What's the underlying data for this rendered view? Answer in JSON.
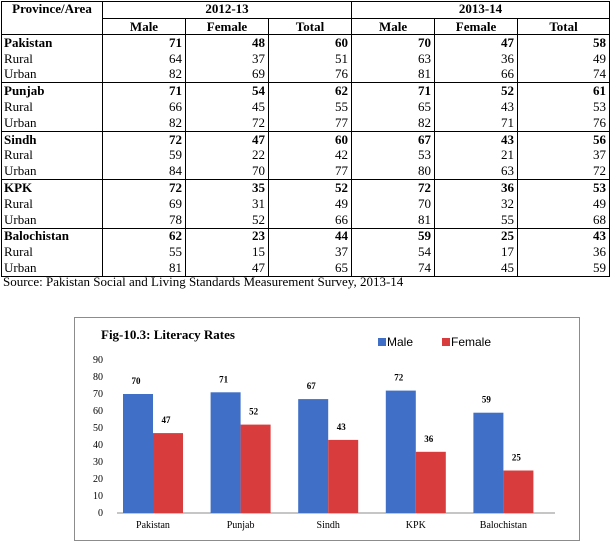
{
  "table": {
    "area_header": "Province/Area",
    "years": [
      "2012-13",
      "2013-14"
    ],
    "subheaders": [
      "Male",
      "Female",
      "Total",
      "Male",
      "Female",
      "Total"
    ],
    "rows": [
      {
        "area": "Pakistan",
        "bold": true,
        "v": [
          "71",
          "48",
          "60",
          "70",
          "47",
          "58"
        ]
      },
      {
        "area": "Rural",
        "bold": false,
        "v": [
          "64",
          "37",
          "51",
          "63",
          "36",
          "49"
        ]
      },
      {
        "area": "Urban",
        "bold": false,
        "v": [
          "82",
          "69",
          "76",
          "81",
          "66",
          "74"
        ]
      },
      {
        "area": "Punjab",
        "bold": true,
        "v": [
          "71",
          "54",
          "62",
          "71",
          "52",
          "61"
        ]
      },
      {
        "area": "Rural",
        "bold": false,
        "v": [
          "66",
          "45",
          "55",
          "65",
          "43",
          "53"
        ]
      },
      {
        "area": "Urban",
        "bold": false,
        "v": [
          "82",
          "72",
          "77",
          "82",
          "71",
          "76"
        ]
      },
      {
        "area": "Sindh",
        "bold": true,
        "v": [
          "72",
          "47",
          "60",
          "67",
          "43",
          "56"
        ]
      },
      {
        "area": "Rural",
        "bold": false,
        "v": [
          "59",
          "22",
          "42",
          "53",
          "21",
          "37"
        ]
      },
      {
        "area": "Urban",
        "bold": false,
        "v": [
          "84",
          "70",
          "77",
          "80",
          "63",
          "72"
        ]
      },
      {
        "area": "KPK",
        "bold": true,
        "v": [
          "72",
          "35",
          "52",
          "72",
          "36",
          "53"
        ]
      },
      {
        "area": "Rural",
        "bold": false,
        "v": [
          "69",
          "31",
          "49",
          "70",
          "32",
          "49"
        ]
      },
      {
        "area": "Urban",
        "bold": false,
        "v": [
          "78",
          "52",
          "66",
          "81",
          "55",
          "68"
        ]
      },
      {
        "area": "Balochistan",
        "bold": true,
        "v": [
          "62",
          "23",
          "44",
          "59",
          "25",
          "43"
        ]
      },
      {
        "area": "Rural",
        "bold": false,
        "v": [
          "55",
          "15",
          "37",
          "54",
          "17",
          "36"
        ]
      },
      {
        "area": "Urban",
        "bold": false,
        "v": [
          "81",
          "47",
          "65",
          "74",
          "45",
          "59"
        ]
      }
    ],
    "source": "Source: Pakistan Social and Living Standards Measurement Survey, 2013-14"
  },
  "chart_data": {
    "type": "bar",
    "title": "Fig-10.3: Literacy Rates",
    "categories": [
      "Pakistan",
      "Punjab",
      "Sindh",
      "KPK",
      "Balochistan"
    ],
    "series": [
      {
        "name": "Male",
        "values": [
          70,
          71,
          67,
          72,
          59
        ],
        "color": "#3f6fc6"
      },
      {
        "name": "Female",
        "values": [
          47,
          52,
          43,
          36,
          25
        ],
        "color": "#d93c3c"
      }
    ],
    "ylim": [
      0,
      90
    ],
    "yticks": [
      0,
      10,
      20,
      30,
      40,
      50,
      60,
      70,
      80,
      90
    ],
    "xlabel": "",
    "ylabel": "",
    "grid": false,
    "legend_position": "top-right"
  }
}
